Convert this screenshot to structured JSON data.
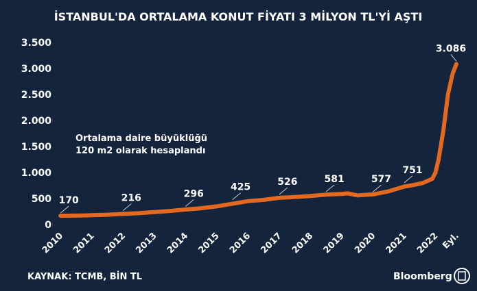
{
  "chart_data": {
    "type": "line",
    "title": "İSTANBUL'DA ORTALAMA KONUT FİYATI 3 MİLYON TL'Yİ AŞTI",
    "note": [
      "Ortalama daire büyüklüğü",
      "120 m2 olarak hesaplandı"
    ],
    "source": "KAYNAK: TCMB, BİN TL",
    "brand": "Bloomberg",
    "color": "#e2691f",
    "x": [
      2010,
      2010.5,
      2011,
      2011.5,
      2012,
      2012.5,
      2013,
      2013.5,
      2014,
      2014.5,
      2015,
      2015.5,
      2016,
      2016.5,
      2017,
      2017.5,
      2018,
      2018.5,
      2019,
      2019.2,
      2019.5,
      2020,
      2020.5,
      2021,
      2021.3,
      2021.6,
      2021.9,
      2022,
      2022.1,
      2022.25,
      2022.4,
      2022.55,
      2022.67
    ],
    "values": [
      170,
      172,
      180,
      190,
      205,
      218,
      240,
      262,
      290,
      315,
      350,
      400,
      450,
      475,
      515,
      530,
      550,
      575,
      590,
      600,
      560,
      580,
      640,
      730,
      760,
      800,
      880,
      1000,
      1250,
      1800,
      2500,
      2900,
      3086
    ],
    "annotations": [
      {
        "x": 2010,
        "value": 170
      },
      {
        "x": 2012,
        "value": 216
      },
      {
        "x": 2014,
        "value": 296
      },
      {
        "x": 2015.5,
        "value": 425
      },
      {
        "x": 2017,
        "value": 526
      },
      {
        "x": 2018.5,
        "value": 581
      },
      {
        "x": 2020,
        "value": 577
      },
      {
        "x": 2021,
        "value": 751
      },
      {
        "x": 2022.67,
        "value": 3086,
        "label": "3.086"
      }
    ],
    "xlim": [
      2009.6,
      2023.0
    ],
    "xticks": [
      2010,
      2011,
      2012,
      2013,
      2014,
      2015,
      2016,
      2017,
      2018,
      2019,
      2020,
      2021,
      2022,
      {
        "value": 2022.67,
        "label": "Eyl."
      }
    ],
    "ylim": [
      0,
      3500
    ],
    "yticks": [
      0,
      {
        "value": 500,
        "label": "500"
      },
      {
        "value": 1000,
        "label": "1.000"
      },
      {
        "value": 1500,
        "label": "1.500"
      },
      {
        "value": 2000,
        "label": "2.000"
      },
      {
        "value": 2500,
        "label": "2.500"
      },
      {
        "value": 3000,
        "label": "3.000"
      },
      {
        "value": 3500,
        "label": "3.500"
      }
    ],
    "grid": false
  }
}
